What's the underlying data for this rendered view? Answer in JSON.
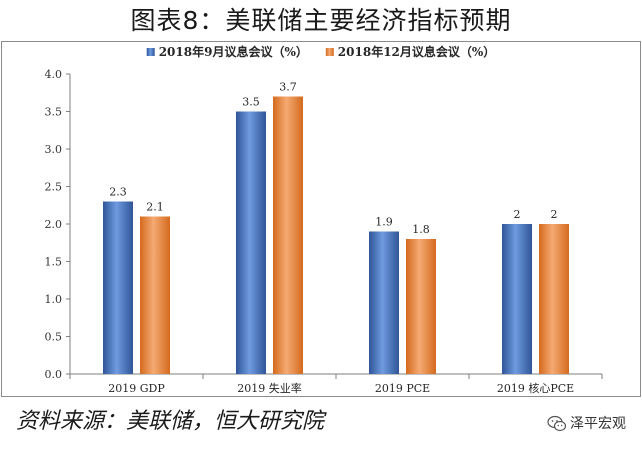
{
  "title": "图表8：美联储主要经济指标预期",
  "source": "资料来源：美联储，恒大研究院",
  "watermark": {
    "icon": "wechat-icon",
    "text": "泽平宏观"
  },
  "colors": {
    "series_0": "#4472C4",
    "series_1": "#ED7D31"
  },
  "chart_data": {
    "type": "bar",
    "categories": [
      "2019 GDP",
      "2019 失业率",
      "2019 PCE",
      "2019 核心PCE"
    ],
    "series": [
      {
        "name": "2018年9月议息会议（%）",
        "values": [
          2.3,
          3.5,
          1.9,
          2
        ]
      },
      {
        "name": "2018年12月议息会议（%）",
        "values": [
          2.1,
          3.7,
          1.8,
          2
        ]
      }
    ],
    "value_labels": [
      [
        "2.3",
        "3.5",
        "1.9",
        "2"
      ],
      [
        "2.1",
        "3.7",
        "1.8",
        "2"
      ]
    ],
    "y_ticks": [
      "0.0",
      "0.5",
      "1.0",
      "1.5",
      "2.0",
      "2.5",
      "3.0",
      "3.5",
      "4.0"
    ],
    "ylim": [
      0,
      4
    ],
    "grid": false,
    "legend_position": "top"
  }
}
